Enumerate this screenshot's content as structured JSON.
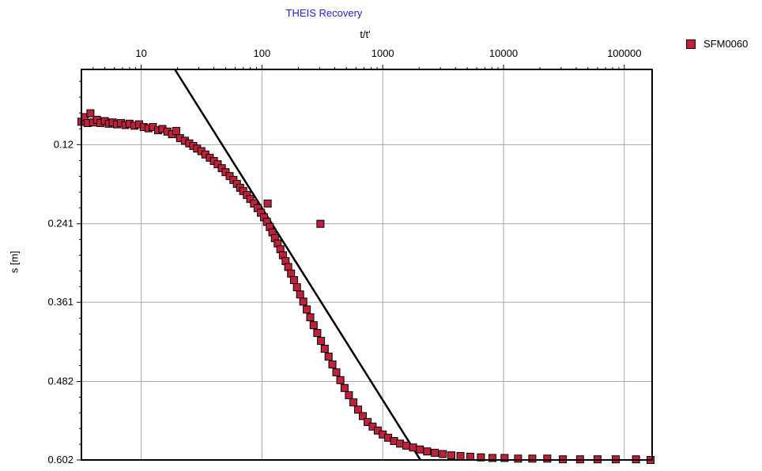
{
  "chart_data": {
    "type": "scatter",
    "title": "THEIS Recovery",
    "xlabel": "t/t'",
    "ylabel": "s [m]",
    "x_scale": "log",
    "x_axis_position": "top",
    "y_axis_inverted": true,
    "xlim": [
      3.2,
      170000
    ],
    "ylim": [
      0.005,
      0.602
    ],
    "x_ticks": [
      "10",
      "100",
      "1000",
      "10000",
      "100000"
    ],
    "y_ticks": [
      "0.12",
      "0.241",
      "0.361",
      "0.482",
      "0.602"
    ],
    "grid": true,
    "legend_position": "top-right",
    "series": [
      {
        "name": "SFM0060",
        "marker": "square",
        "color": "#c0213a",
        "points": [
          [
            3.2,
            0.085
          ],
          [
            3.4,
            0.078
          ],
          [
            3.6,
            0.087
          ],
          [
            3.8,
            0.072
          ],
          [
            4.0,
            0.086
          ],
          [
            4.3,
            0.082
          ],
          [
            4.6,
            0.087
          ],
          [
            5.0,
            0.084
          ],
          [
            5.4,
            0.088
          ],
          [
            5.8,
            0.086
          ],
          [
            6.3,
            0.089
          ],
          [
            6.8,
            0.087
          ],
          [
            7.4,
            0.09
          ],
          [
            8.0,
            0.088
          ],
          [
            8.8,
            0.091
          ],
          [
            9.6,
            0.089
          ],
          [
            10.5,
            0.093
          ],
          [
            11.5,
            0.095
          ],
          [
            12.5,
            0.093
          ],
          [
            13.8,
            0.098
          ],
          [
            15.0,
            0.096
          ],
          [
            16.5,
            0.1
          ],
          [
            18.0,
            0.104
          ],
          [
            19.5,
            0.099
          ],
          [
            21.0,
            0.11
          ],
          [
            23.0,
            0.114
          ],
          [
            25.0,
            0.118
          ],
          [
            27.0,
            0.122
          ],
          [
            29.0,
            0.126
          ],
          [
            31.5,
            0.13
          ],
          [
            34.0,
            0.135
          ],
          [
            37.0,
            0.14
          ],
          [
            40.0,
            0.145
          ],
          [
            43.0,
            0.15
          ],
          [
            46.5,
            0.156
          ],
          [
            50.0,
            0.162
          ],
          [
            54.0,
            0.168
          ],
          [
            58.0,
            0.174
          ],
          [
            62.0,
            0.18
          ],
          [
            66.0,
            0.186
          ],
          [
            70.0,
            0.191
          ],
          [
            75.0,
            0.197
          ],
          [
            80.0,
            0.203
          ],
          [
            86.0,
            0.21
          ],
          [
            92.0,
            0.217
          ],
          [
            98.0,
            0.224
          ],
          [
            104.0,
            0.231
          ],
          [
            110.0,
            0.238
          ],
          [
            111.5,
            0.21
          ],
          [
            116.0,
            0.246
          ],
          [
            122.0,
            0.254
          ],
          [
            128.0,
            0.263
          ],
          [
            135.0,
            0.271
          ],
          [
            142.0,
            0.28
          ],
          [
            149.0,
            0.289
          ],
          [
            157.0,
            0.298
          ],
          [
            165.0,
            0.307
          ],
          [
            174.0,
            0.317
          ],
          [
            184.0,
            0.327
          ],
          [
            195.0,
            0.338
          ],
          [
            207.0,
            0.349
          ],
          [
            220.0,
            0.36
          ],
          [
            235.0,
            0.372
          ],
          [
            251.0,
            0.384
          ],
          [
            268.0,
            0.396
          ],
          [
            287.0,
            0.408
          ],
          [
            305.0,
            0.241
          ],
          [
            308.0,
            0.42
          ],
          [
            331.0,
            0.432
          ],
          [
            356.0,
            0.444
          ],
          [
            383.0,
            0.456
          ],
          [
            413.0,
            0.468
          ],
          [
            446.0,
            0.48
          ],
          [
            483.0,
            0.492
          ],
          [
            525.0,
            0.503
          ],
          [
            572.0,
            0.514
          ],
          [
            625.0,
            0.525
          ],
          [
            684.0,
            0.535
          ],
          [
            750.0,
            0.544
          ],
          [
            825.0,
            0.551
          ],
          [
            910.0,
            0.557
          ],
          [
            1000.0,
            0.563
          ],
          [
            1110.0,
            0.568
          ],
          [
            1240.0,
            0.573
          ],
          [
            1390.0,
            0.577
          ],
          [
            1570.0,
            0.58
          ],
          [
            1780.0,
            0.583
          ],
          [
            2030.0,
            0.586
          ],
          [
            2330.0,
            0.589
          ],
          [
            2700.0,
            0.591
          ],
          [
            3150.0,
            0.593
          ],
          [
            3700.0,
            0.595
          ],
          [
            4400.0,
            0.596
          ],
          [
            5300.0,
            0.597
          ],
          [
            6500.0,
            0.598
          ],
          [
            8100.0,
            0.599
          ],
          [
            10200.0,
            0.599
          ],
          [
            13200.0,
            0.6
          ],
          [
            17300.0,
            0.6
          ],
          [
            23000.0,
            0.6
          ],
          [
            31000.0,
            0.601
          ],
          [
            43000.0,
            0.601
          ],
          [
            60000.0,
            0.601
          ],
          [
            85000.0,
            0.601
          ],
          [
            125000.0,
            0.601
          ],
          [
            165000.0,
            0.602
          ]
        ]
      },
      {
        "type": "line",
        "color": "#000000",
        "points": [
          [
            19.0,
            0.005
          ],
          [
            2050.0,
            0.602
          ]
        ]
      }
    ]
  }
}
